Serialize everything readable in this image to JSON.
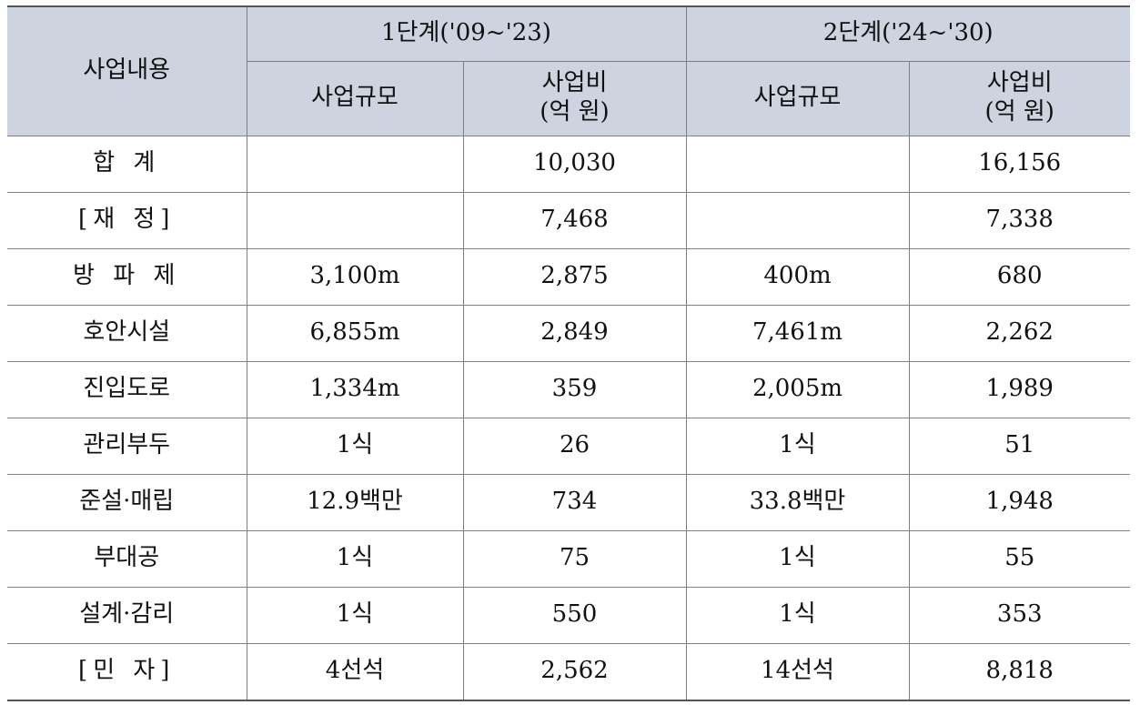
{
  "header": {
    "item": "사업내용",
    "phase1": "1단계('09~'23)",
    "phase2": "2단계('24~'30)",
    "scale": "사업규모",
    "cost_line1": "사업비",
    "cost_line2": "(억 원)"
  },
  "rows": [
    {
      "item": "합 계",
      "p1_scale": "",
      "p1_cost": "10,030",
      "p2_scale": "",
      "p2_cost": "16,156"
    },
    {
      "item": "[재 정]",
      "p1_scale": "",
      "p1_cost": "7,468",
      "p2_scale": "",
      "p2_cost": "7,338"
    },
    {
      "item": "방 파 제",
      "p1_scale": "3,100m",
      "p1_cost": "2,875",
      "p2_scale": "400m",
      "p2_cost": "680"
    },
    {
      "item": "호안시설",
      "p1_scale": "6,855m",
      "p1_cost": "2,849",
      "p2_scale": "7,461m",
      "p2_cost": "2,262"
    },
    {
      "item": "진입도로",
      "p1_scale": "1,334m",
      "p1_cost": "359",
      "p2_scale": "2,005m",
      "p2_cost": "1,989"
    },
    {
      "item": "관리부두",
      "p1_scale": "1식",
      "p1_cost": "26",
      "p2_scale": "1식",
      "p2_cost": "51"
    },
    {
      "item": "준설·매립",
      "p1_scale": "12.9백만",
      "p1_cost": "734",
      "p2_scale": "33.8백만",
      "p2_cost": "1,948"
    },
    {
      "item": "부대공",
      "p1_scale": "1식",
      "p1_cost": "75",
      "p2_scale": "1식",
      "p2_cost": "55"
    },
    {
      "item": "설계·감리",
      "p1_scale": "1식",
      "p1_cost": "550",
      "p2_scale": "1식",
      "p2_cost": "353"
    },
    {
      "item": "[민 자]",
      "p1_scale": "4선석",
      "p1_cost": "2,562",
      "p2_scale": "14선석",
      "p2_cost": "8,818"
    }
  ],
  "colors": {
    "header_bg": "#cdd3df",
    "border": "#7f7f7f"
  }
}
